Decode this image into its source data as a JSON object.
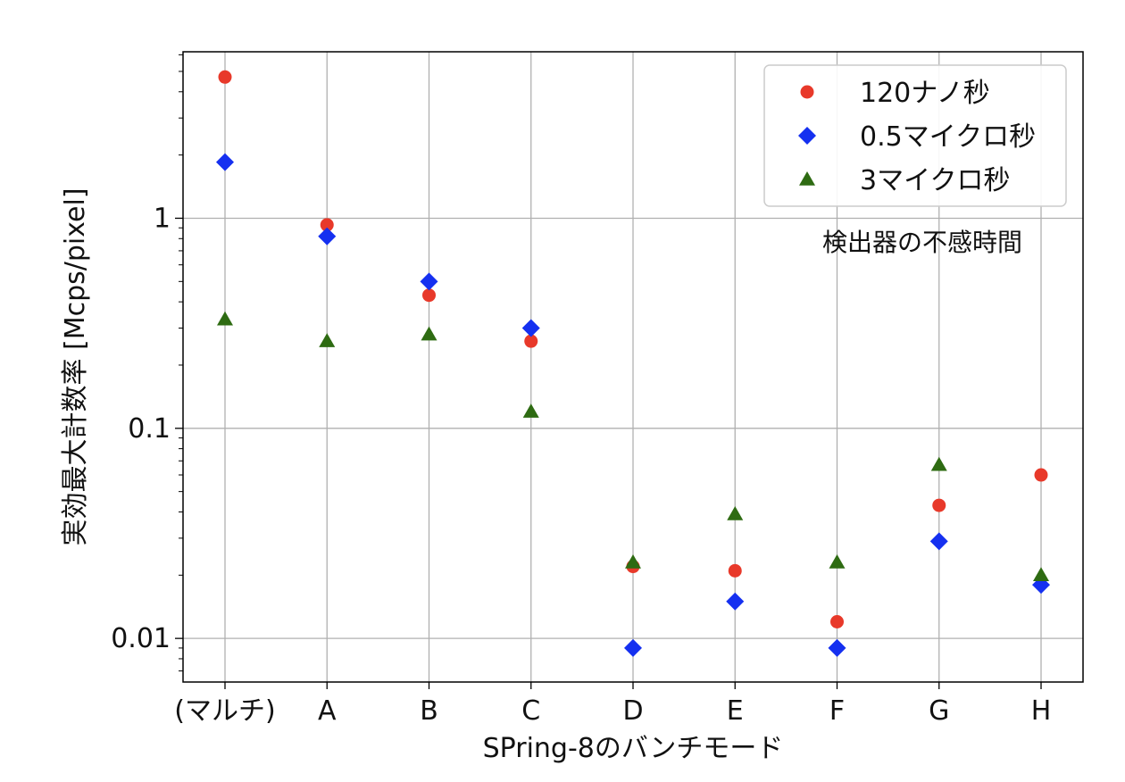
{
  "chart_data": {
    "type": "scatter",
    "title": "",
    "xlabel": "SPring-8のバンチモード",
    "ylabel": "実効最大計数率 [Mcps/pixel]",
    "yscale": "log",
    "ylim": [
      0.0062,
      6.2
    ],
    "yticks": [
      {
        "value": 0.01,
        "label": "0.01"
      },
      {
        "value": 0.1,
        "label": "0.1"
      },
      {
        "value": 1,
        "label": "1"
      }
    ],
    "categories": [
      "(マルチ)",
      "A",
      "B",
      "C",
      "D",
      "E",
      "F",
      "G",
      "H"
    ],
    "grid": true,
    "legend_position": "top-right",
    "legend_title": "検出器の不感時間",
    "series": [
      {
        "name": "120ナノ秒",
        "marker": "circle",
        "color": "#e8392a",
        "values": [
          4.7,
          0.93,
          0.43,
          0.26,
          0.022,
          0.021,
          0.012,
          0.043,
          0.06
        ]
      },
      {
        "name": "0.5マイクロ秒",
        "marker": "diamond",
        "color": "#1530f0",
        "values": [
          1.85,
          0.82,
          0.5,
          0.3,
          0.009,
          0.015,
          0.009,
          0.029,
          0.018
        ]
      },
      {
        "name": "3マイクロ秒",
        "marker": "triangle",
        "color": "#2e6b12",
        "values": [
          0.33,
          0.26,
          0.28,
          0.12,
          0.023,
          0.039,
          0.023,
          0.067,
          0.02
        ]
      }
    ]
  }
}
